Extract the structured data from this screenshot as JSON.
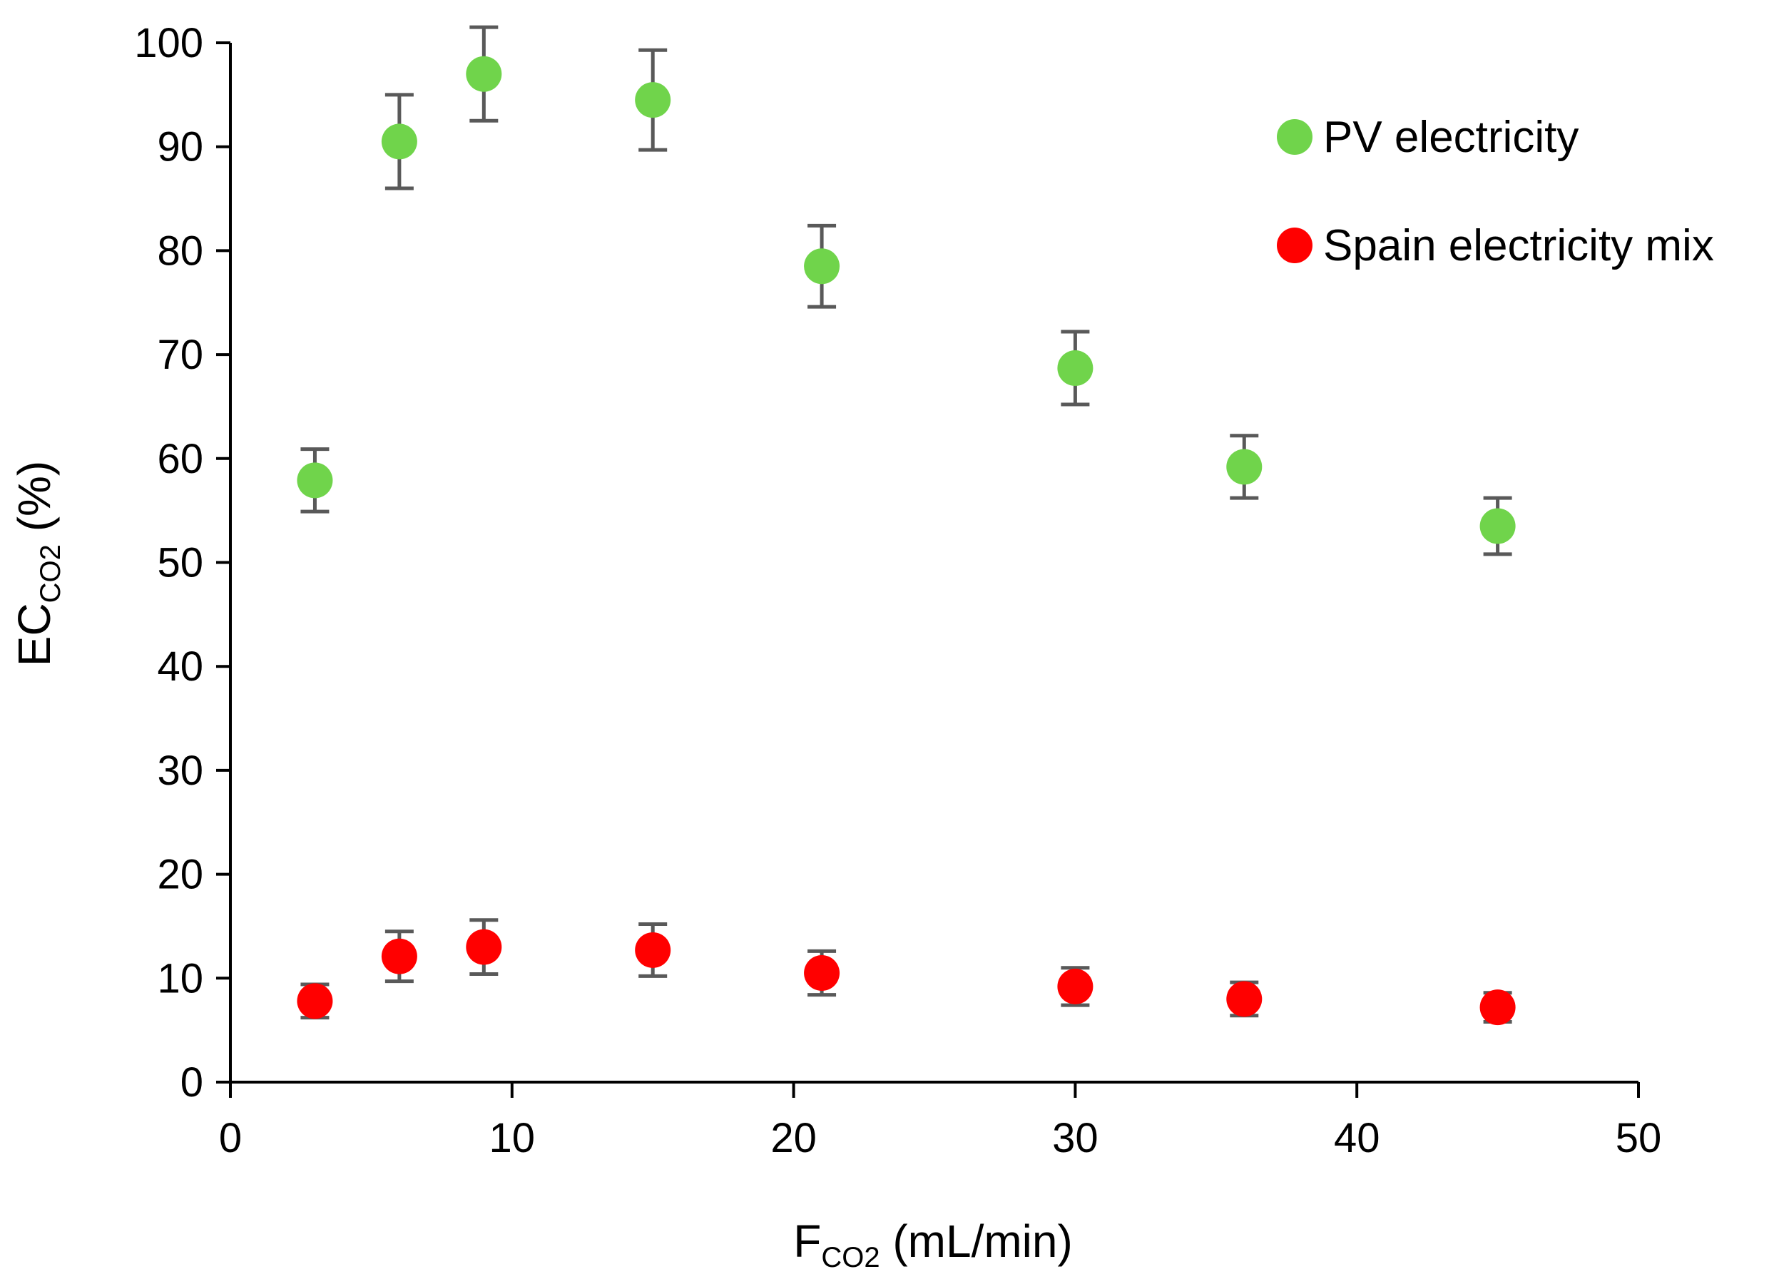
{
  "chart_data": {
    "type": "scatter",
    "title": "",
    "xlabel": {
      "main": "F",
      "subscript": "CO2",
      "suffix": " (mL/min)"
    },
    "ylabel": {
      "main": "EC",
      "subscript": "CO2",
      "suffix": " (%)"
    },
    "xlim": [
      0,
      50
    ],
    "ylim": [
      0,
      100
    ],
    "xticks": [
      0,
      10,
      20,
      30,
      40,
      50
    ],
    "yticks": [
      0,
      10,
      20,
      30,
      40,
      50,
      60,
      70,
      80,
      90,
      100
    ],
    "grid": false,
    "legend_position": "top-right",
    "error_bar_color": "#595959",
    "series": [
      {
        "name": "PV electricity",
        "color": "#70d44b",
        "x": [
          3,
          6,
          9,
          15,
          21,
          30,
          36,
          45
        ],
        "y": [
          57.9,
          90.5,
          97.0,
          94.5,
          78.5,
          68.7,
          59.2,
          53.5
        ],
        "err": [
          3.0,
          4.5,
          4.5,
          4.8,
          3.9,
          3.5,
          3.0,
          2.7
        ]
      },
      {
        "name": "Spain electricity mix",
        "color": "#ff0000",
        "x": [
          3,
          6,
          9,
          15,
          21,
          30,
          36,
          45
        ],
        "y": [
          7.8,
          12.1,
          13.0,
          12.7,
          10.5,
          9.2,
          8.0,
          7.2
        ],
        "err": [
          1.6,
          2.4,
          2.6,
          2.5,
          2.1,
          1.8,
          1.6,
          1.4
        ]
      }
    ]
  }
}
